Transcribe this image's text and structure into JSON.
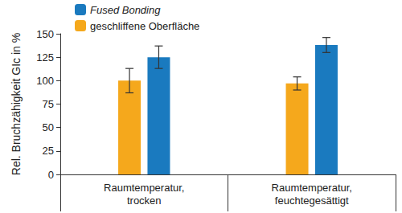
{
  "chart_data": {
    "type": "bar",
    "y_label": "Rel. Bruchzähigkeit GIc in %",
    "categories": [
      "Raumtemperatur,\ntrocken",
      "Raumtemperatur,\nfeuchtegesättigt"
    ],
    "series": [
      {
        "name": "geschliffene Oberfläche",
        "color": "#f5a81c",
        "values": [
          100,
          97
        ],
        "errors": [
          13,
          7
        ]
      },
      {
        "name": "Fused Bonding",
        "color": "#1a7abf",
        "values": [
          125,
          138
        ],
        "errors": [
          12,
          8
        ]
      }
    ],
    "ylim": [
      0,
      150
    ],
    "yticks": [
      0,
      25,
      50,
      75,
      100,
      125,
      150
    ],
    "grid": false
  }
}
